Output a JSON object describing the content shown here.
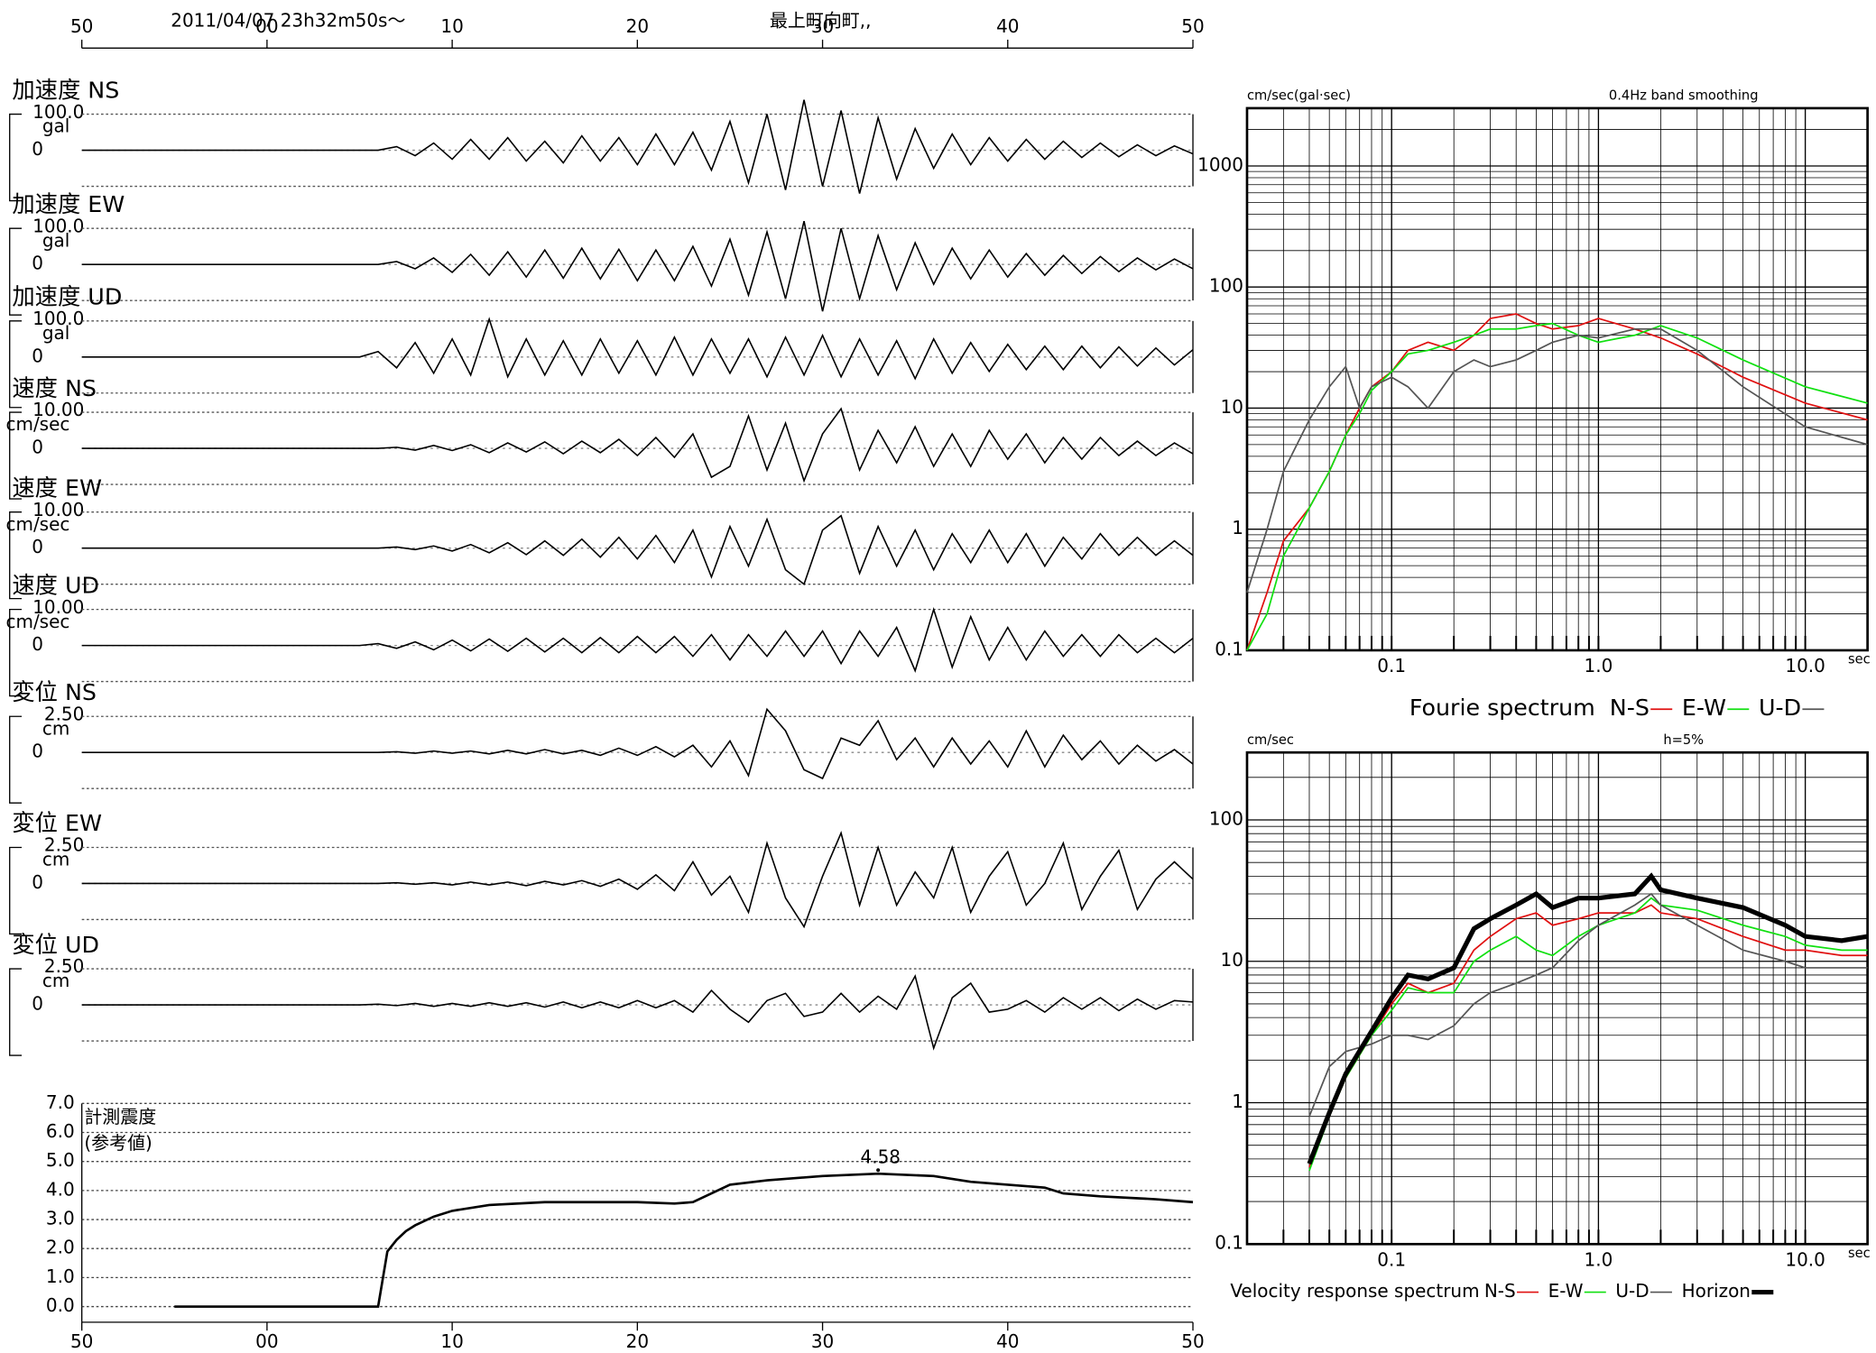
{
  "header": {
    "datetime": "2011/04/07  23h32m50s〜",
    "station": "最上町向町,,"
  },
  "waveforms": {
    "xlim": [
      -10,
      50
    ],
    "xticks": [
      {
        "value": -10,
        "label": "50"
      },
      {
        "value": 0,
        "label": "00"
      },
      10,
      20,
      30,
      40,
      50
    ],
    "times": [
      -10,
      -9,
      -8,
      -7,
      -6,
      -5,
      -4,
      -3,
      -2,
      -1,
      0,
      1,
      2,
      3,
      4,
      5,
      6,
      7,
      8,
      9,
      10,
      11,
      12,
      13,
      14,
      15,
      16,
      17,
      18,
      19,
      20,
      21,
      22,
      23,
      24,
      25,
      26,
      27,
      28,
      29,
      30,
      31,
      32,
      33,
      34,
      35,
      36,
      37,
      38,
      39,
      40,
      41,
      42,
      43,
      44,
      45,
      46,
      47,
      48,
      49,
      50
    ],
    "traces": [
      {
        "label": "加速度 NS",
        "unit": "gal",
        "scale": {
          "value": 100,
          "label": "100.0"
        },
        "zero_label": "0",
        "values": [
          0,
          0,
          0,
          0,
          0,
          0,
          0,
          0,
          0,
          0,
          0,
          0,
          0,
          0,
          0,
          0,
          0,
          10,
          -15,
          20,
          -25,
          30,
          -25,
          35,
          -30,
          25,
          -35,
          40,
          -30,
          35,
          -40,
          45,
          -40,
          50,
          -55,
          80,
          -90,
          100,
          -110,
          140,
          -100,
          110,
          -120,
          90,
          -80,
          60,
          -50,
          45,
          -40,
          35,
          -30,
          30,
          -25,
          25,
          -20,
          20,
          -18,
          15,
          -15,
          12,
          -10
        ]
      },
      {
        "label": "加速度 EW",
        "unit": "gal",
        "scale": {
          "value": 100,
          "label": "100.0"
        },
        "zero_label": "0",
        "values": [
          0,
          0,
          0,
          0,
          0,
          0,
          0,
          0,
          0,
          0,
          0,
          0,
          0,
          0,
          0,
          0,
          0,
          8,
          -12,
          18,
          -22,
          28,
          -30,
          35,
          -35,
          40,
          -38,
          45,
          -40,
          42,
          -45,
          40,
          -45,
          50,
          -60,
          70,
          -85,
          90,
          -95,
          120,
          -130,
          100,
          -95,
          80,
          -70,
          60,
          -55,
          45,
          -40,
          40,
          -35,
          30,
          -30,
          25,
          -25,
          22,
          -20,
          18,
          -15,
          15,
          -12
        ]
      },
      {
        "label": "加速度 UD",
        "unit": "gal",
        "scale": {
          "value": 100,
          "label": "100.0"
        },
        "zero_label": "0",
        "values": [
          0,
          0,
          0,
          0,
          0,
          0,
          0,
          0,
          0,
          0,
          0,
          0,
          0,
          0,
          0,
          0,
          15,
          -30,
          40,
          -45,
          50,
          -50,
          105,
          -55,
          50,
          -50,
          45,
          -50,
          50,
          -45,
          45,
          -50,
          55,
          -50,
          50,
          -45,
          50,
          -55,
          55,
          -50,
          60,
          -55,
          50,
          -50,
          45,
          -60,
          50,
          -45,
          40,
          -40,
          35,
          -35,
          30,
          -35,
          30,
          -30,
          28,
          -25,
          25,
          -22,
          20
        ]
      },
      {
        "label": "速度 NS",
        "unit": "cm/sec",
        "scale": {
          "value": 10,
          "label": "10.00"
        },
        "zero_label": "0",
        "values": [
          0,
          0,
          0,
          0,
          0,
          0,
          0,
          0,
          0,
          0,
          0,
          0,
          0,
          0,
          0,
          0,
          0,
          0.3,
          -0.5,
          0.8,
          -0.6,
          1,
          -1.2,
          1.5,
          -1,
          1.8,
          -1.5,
          2,
          -1.2,
          2.5,
          -2,
          3,
          -2.5,
          4,
          -8,
          -5,
          9,
          -6,
          7,
          -9,
          4,
          11,
          -6,
          5,
          -4,
          6,
          -5,
          4,
          -5,
          5,
          -3,
          4,
          -4,
          3,
          -3,
          3,
          -2,
          2,
          -2,
          1.5,
          -1.5
        ]
      },
      {
        "label": "速度 EW",
        "unit": "cm/sec",
        "scale": {
          "value": 10,
          "label": "10.00"
        },
        "zero_label": "0",
        "values": [
          0,
          0,
          0,
          0,
          0,
          0,
          0,
          0,
          0,
          0,
          0,
          0,
          0,
          0,
          0,
          0,
          0,
          0.3,
          -0.4,
          0.6,
          -0.8,
          1,
          -1.3,
          1.5,
          -1.8,
          2,
          -2,
          2.5,
          -2.5,
          3,
          -3,
          3.5,
          -4,
          5,
          -8,
          6,
          -5,
          8,
          -6,
          -10,
          5,
          9,
          -7,
          6,
          -5,
          5,
          -6,
          4,
          -4,
          5,
          -4,
          4,
          -5,
          3,
          -3,
          4,
          -2,
          3,
          -2,
          2,
          -2
        ]
      },
      {
        "label": "速度 UD",
        "unit": "cm/sec",
        "scale": {
          "value": 10,
          "label": "10.00"
        },
        "zero_label": "0",
        "values": [
          0,
          0,
          0,
          0,
          0,
          0,
          0,
          0,
          0,
          0,
          0,
          0,
          0,
          0,
          0,
          0,
          0.5,
          -0.8,
          1,
          -1.2,
          1.5,
          -1.5,
          1.8,
          -1.6,
          2,
          -1.8,
          2,
          -2,
          2.2,
          -2,
          2.5,
          -2,
          2.5,
          -3,
          3,
          -4,
          3,
          -3,
          4,
          -3,
          4,
          -5,
          4,
          -3,
          5,
          -7,
          10,
          -6,
          8,
          -4,
          5,
          -4,
          4,
          -3,
          3,
          -3,
          3,
          -2,
          2,
          -2,
          2
        ]
      },
      {
        "label": "変位 NS",
        "unit": "cm",
        "scale": {
          "value": 2.5,
          "label": "2.50"
        },
        "zero_label": "0",
        "values": [
          0,
          0,
          0,
          0,
          0,
          0,
          0,
          0,
          0,
          0,
          0,
          0,
          0,
          0,
          0,
          0,
          0,
          0.05,
          -0.05,
          0.1,
          -0.05,
          0.1,
          -0.1,
          0.15,
          -0.1,
          0.2,
          -0.1,
          0.15,
          -0.2,
          0.3,
          -0.2,
          0.4,
          -0.3,
          0.5,
          -1,
          0.8,
          -1.6,
          3,
          1.5,
          -1.2,
          -1.8,
          1,
          0.5,
          2.2,
          -0.5,
          1,
          -1,
          1,
          -0.8,
          0.8,
          -1,
          1.5,
          -1,
          1.2,
          -0.5,
          0.8,
          -0.8,
          0.5,
          -0.6,
          0.2,
          -0.8
        ]
      },
      {
        "label": "変位 EW",
        "unit": "cm",
        "scale": {
          "value": 2.5,
          "label": "2.50"
        },
        "zero_label": "0",
        "values": [
          0,
          0,
          0,
          0,
          0,
          0,
          0,
          0,
          0,
          0,
          0,
          0,
          0,
          0,
          0,
          0,
          0,
          0.05,
          -0.05,
          0.05,
          -0.1,
          0.1,
          -0.1,
          0.1,
          -0.15,
          0.15,
          -0.1,
          0.2,
          -0.2,
          0.3,
          -0.4,
          0.6,
          -0.5,
          1.5,
          -0.8,
          0.5,
          -2,
          2.8,
          -1,
          -3,
          0.5,
          3.5,
          -1.5,
          2.5,
          -1.5,
          0.8,
          -1,
          2.5,
          -2,
          0.5,
          2.2,
          -1.5,
          0,
          2.8,
          -1.8,
          0.5,
          2.3,
          -1.8,
          0.3,
          1.5,
          0.3
        ]
      },
      {
        "label": "変位 UD",
        "unit": "cm",
        "scale": {
          "value": 2.5,
          "label": "2.50"
        },
        "zero_label": "0",
        "values": [
          0,
          0,
          0,
          0,
          0,
          0,
          0,
          0,
          0,
          0,
          0,
          0,
          0,
          0,
          0,
          0,
          0.05,
          -0.05,
          0.1,
          -0.1,
          0.1,
          -0.1,
          0.15,
          -0.1,
          0.15,
          -0.15,
          0.2,
          -0.2,
          0.2,
          -0.2,
          0.3,
          -0.2,
          0.3,
          -0.5,
          1,
          -0.3,
          -1.2,
          0.3,
          0.8,
          -0.8,
          -0.5,
          0.8,
          -0.5,
          0.6,
          -0.3,
          2,
          -3,
          0.5,
          1.5,
          -0.5,
          -0.3,
          0.3,
          -0.5,
          0.5,
          -0.3,
          0.5,
          -0.4,
          0.4,
          -0.3,
          0.3,
          0.2
        ]
      }
    ]
  },
  "intensity": {
    "label_lines": [
      "計測震度",
      "(参考値)"
    ],
    "ylim": [
      0,
      7
    ],
    "yticks": [
      {
        "value": 0,
        "label": "0.0"
      },
      {
        "value": 1,
        "label": "1.0"
      },
      {
        "value": 2,
        "label": "2.0"
      },
      {
        "value": 3,
        "label": "3.0"
      },
      {
        "value": 4,
        "label": "4.0"
      },
      {
        "value": 5,
        "label": "5.0"
      },
      {
        "value": 6,
        "label": "6.0"
      },
      {
        "value": 7,
        "label": "7.0"
      }
    ],
    "x": [
      -5,
      6,
      6.5,
      7,
      7.5,
      8,
      9,
      10,
      12,
      15,
      18,
      20,
      22,
      23,
      24,
      25,
      27,
      30,
      33,
      36,
      38,
      40,
      42,
      43,
      45,
      48,
      50
    ],
    "values": [
      0,
      0,
      1.9,
      2.3,
      2.6,
      2.8,
      3.1,
      3.3,
      3.5,
      3.6,
      3.6,
      3.6,
      3.55,
      3.6,
      3.9,
      4.2,
      4.35,
      4.5,
      4.58,
      4.5,
      4.3,
      4.2,
      4.1,
      3.9,
      3.8,
      3.7,
      3.6
    ],
    "peak": {
      "time": 33,
      "value": 4.58
    }
  },
  "fourier": {
    "type": "line",
    "log_x": true,
    "log_y": true,
    "y_label": "cm/sec(gal·sec)",
    "note": "0.4Hz band smoothing",
    "x_unit": "sec",
    "legend_title": "Fourie spectrum",
    "xlim": [
      0.02,
      20
    ],
    "ylim": [
      0.1,
      3000
    ],
    "xticks": [
      0.1,
      {
        "value": 1,
        "label": "1.0"
      },
      {
        "value": 10,
        "label": "10.0"
      }
    ],
    "yticks": [
      0.1,
      1,
      10,
      100,
      1000
    ],
    "x": [
      0.02,
      0.025,
      0.03,
      0.04,
      0.05,
      0.06,
      0.07,
      0.08,
      0.1,
      0.12,
      0.15,
      0.2,
      0.25,
      0.3,
      0.4,
      0.5,
      0.6,
      0.8,
      1,
      1.5,
      2,
      3,
      5,
      10,
      20
    ],
    "series": [
      {
        "name": "N-S",
        "color": "#e01010",
        "width": 1,
        "values": [
          0.1,
          0.3,
          0.8,
          1.5,
          3,
          6,
          10,
          15,
          20,
          30,
          35,
          30,
          40,
          55,
          60,
          50,
          45,
          48,
          55,
          45,
          38,
          28,
          18,
          11,
          8
        ]
      },
      {
        "name": "E-W",
        "color": "#10e010",
        "width": 1,
        "values": [
          0.1,
          0.2,
          0.6,
          1.5,
          3,
          6,
          9,
          14,
          20,
          28,
          30,
          35,
          40,
          45,
          45,
          48,
          50,
          40,
          35,
          40,
          48,
          38,
          25,
          15,
          11
        ]
      },
      {
        "name": "U-D",
        "color": "#555555",
        "width": 1,
        "values": [
          0.3,
          1,
          3,
          8,
          15,
          22,
          10,
          15,
          18,
          15,
          10,
          20,
          25,
          22,
          25,
          30,
          35,
          40,
          38,
          45,
          45,
          30,
          15,
          7,
          5
        ]
      }
    ]
  },
  "response": {
    "type": "line",
    "log_x": true,
    "log_y": true,
    "y_label": "cm/sec",
    "note": "h=5%",
    "x_unit": "sec",
    "legend_title": "Velocity response spectrum",
    "xlim": [
      0.02,
      20
    ],
    "ylim": [
      0.1,
      300
    ],
    "xticks": [
      0.1,
      {
        "value": 1,
        "label": "1.0"
      },
      {
        "value": 10,
        "label": "10.0"
      }
    ],
    "yticks": [
      0.1,
      1,
      10,
      100
    ],
    "x": [
      0.04,
      0.05,
      0.06,
      0.08,
      0.1,
      0.12,
      0.15,
      0.2,
      0.25,
      0.3,
      0.4,
      0.5,
      0.6,
      0.8,
      1,
      1.5,
      1.8,
      2,
      3,
      5,
      8,
      10,
      15,
      20
    ],
    "series": [
      {
        "name": "N-S",
        "color": "#e01010",
        "width": 1,
        "values": [
          0.35,
          0.8,
          1.5,
          3,
          5,
          7,
          6,
          7,
          12,
          15,
          20,
          22,
          18,
          20,
          22,
          22,
          25,
          22,
          20,
          15,
          12,
          12,
          11,
          11
        ]
      },
      {
        "name": "E-W",
        "color": "#10e010",
        "width": 1,
        "values": [
          0.33,
          0.8,
          1.5,
          3,
          4.5,
          6.5,
          6,
          6,
          10,
          12,
          15,
          12,
          11,
          15,
          18,
          22,
          28,
          25,
          23,
          18,
          15,
          13,
          12,
          12
        ]
      },
      {
        "name": "U-D",
        "color": "#555555",
        "width": 1,
        "values": [
          0.8,
          1.8,
          2.3,
          2.6,
          3,
          3,
          2.8,
          3.5,
          5,
          6,
          7,
          8,
          9,
          14,
          18,
          25,
          30,
          25,
          18,
          12,
          10,
          9,
          9,
          9
        ]
      },
      {
        "name": "Horizon",
        "color": "#000000",
        "width": 3,
        "values": [
          0.37,
          0.85,
          1.6,
          3.2,
          5.5,
          8,
          7.5,
          9,
          17,
          20,
          25,
          30,
          24,
          28,
          28,
          30,
          40,
          32,
          28,
          24,
          18,
          15,
          14,
          15
        ]
      }
    ]
  }
}
